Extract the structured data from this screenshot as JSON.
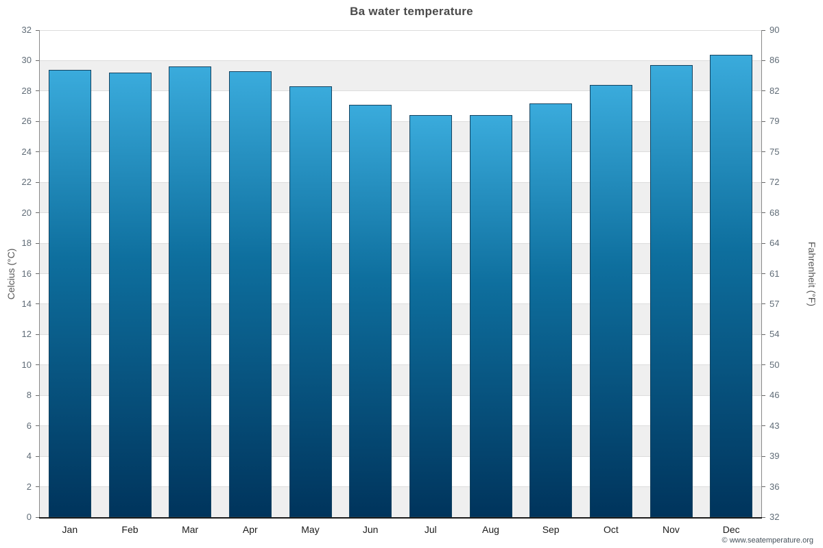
{
  "chart_data": {
    "type": "bar",
    "title": "Ba water temperature",
    "categories": [
      "Jan",
      "Feb",
      "Mar",
      "Apr",
      "May",
      "Jun",
      "Jul",
      "Aug",
      "Sep",
      "Oct",
      "Nov",
      "Dec"
    ],
    "values": [
      29.4,
      29.2,
      29.6,
      29.3,
      28.3,
      27.1,
      26.4,
      26.4,
      27.2,
      28.4,
      29.7,
      30.4
    ],
    "series_name": "Water temperature (°C)",
    "xlabel": "",
    "ylabel_left": "Celcius (°C)",
    "ylabel_right": "Fahrenheit (°F)",
    "ylim": [
      0,
      32
    ],
    "y_left_ticks": [
      "0",
      "2",
      "4",
      "6",
      "8",
      "10",
      "12",
      "14",
      "16",
      "18",
      "20",
      "22",
      "24",
      "26",
      "28",
      "30",
      "32"
    ],
    "y_right_ticks": [
      "32",
      "36",
      "39",
      "43",
      "46",
      "50",
      "54",
      "57",
      "61",
      "64",
      "68",
      "72",
      "75",
      "79",
      "82",
      "86",
      "90"
    ],
    "grid": "horizontal-bands",
    "legend": "none",
    "footer": "© www.seatemperature.org",
    "colors": {
      "bar_top": "#3aabdc",
      "bar_mid": "#0e6f9e",
      "bar_bottom": "#00345c",
      "bar_border": "#14425f",
      "band_gray": "#efefef",
      "gridline": "#dcdcdc",
      "title": "#4a4a4a"
    }
  }
}
